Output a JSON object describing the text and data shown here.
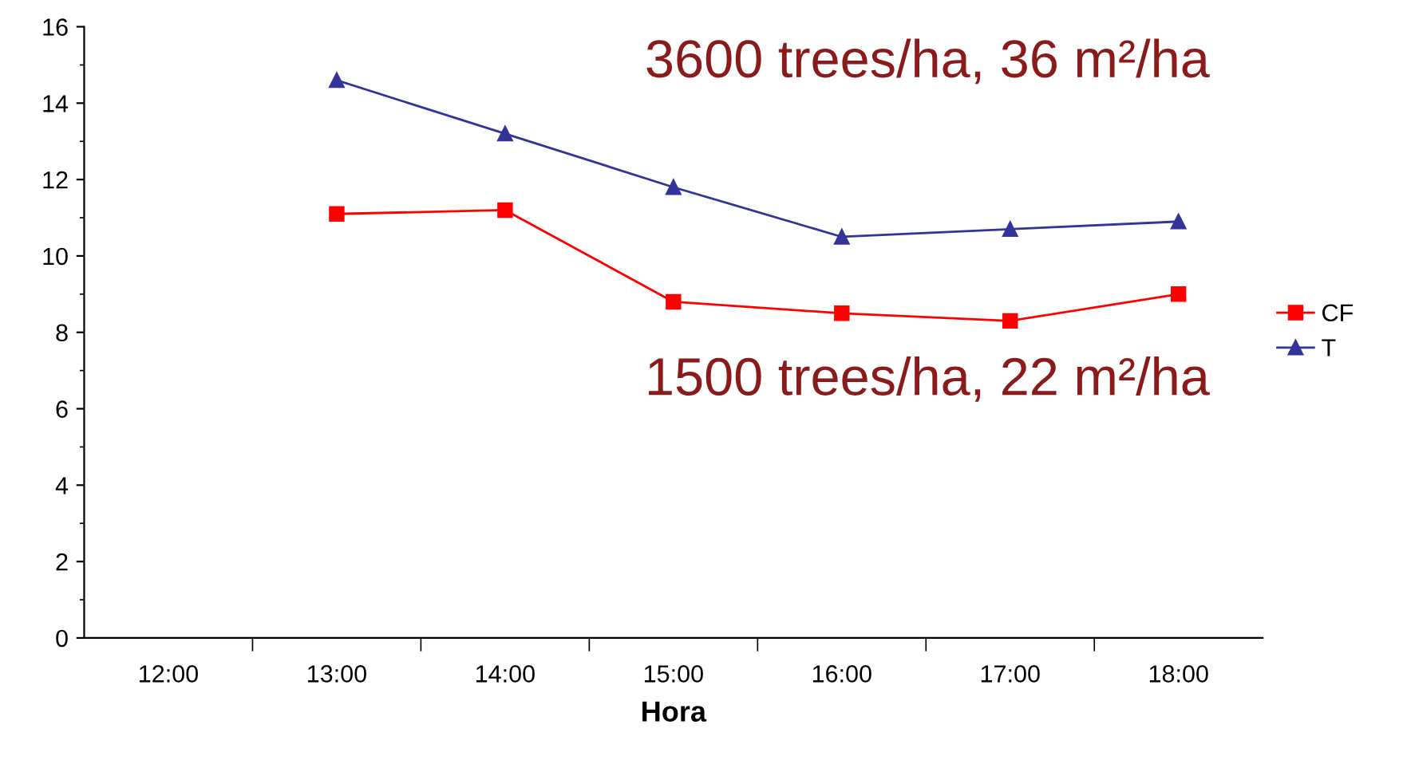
{
  "chart_data": {
    "type": "line",
    "xlabel": "Hora",
    "categories": [
      "12:00",
      "13:00",
      "14:00",
      "15:00",
      "16:00",
      "17:00",
      "18:00"
    ],
    "series": [
      {
        "name": "CF",
        "color": "#ff0000",
        "marker": "square",
        "values": [
          null,
          11.1,
          11.2,
          8.8,
          8.5,
          8.3,
          9.0
        ]
      },
      {
        "name": "T",
        "color": "#333399",
        "marker": "triangle",
        "values": [
          null,
          14.6,
          13.2,
          11.8,
          10.5,
          10.7,
          10.9
        ]
      }
    ],
    "ylim": [
      0,
      16
    ],
    "yticks": [
      0,
      2,
      4,
      6,
      8,
      10,
      12,
      14,
      16
    ],
    "annotations": [
      "3600 trees/ha, 36 m²/ha",
      "1500 trees/ha, 22 m²/ha"
    ],
    "legend": "right",
    "grid": false,
    "line_style": "solid"
  }
}
